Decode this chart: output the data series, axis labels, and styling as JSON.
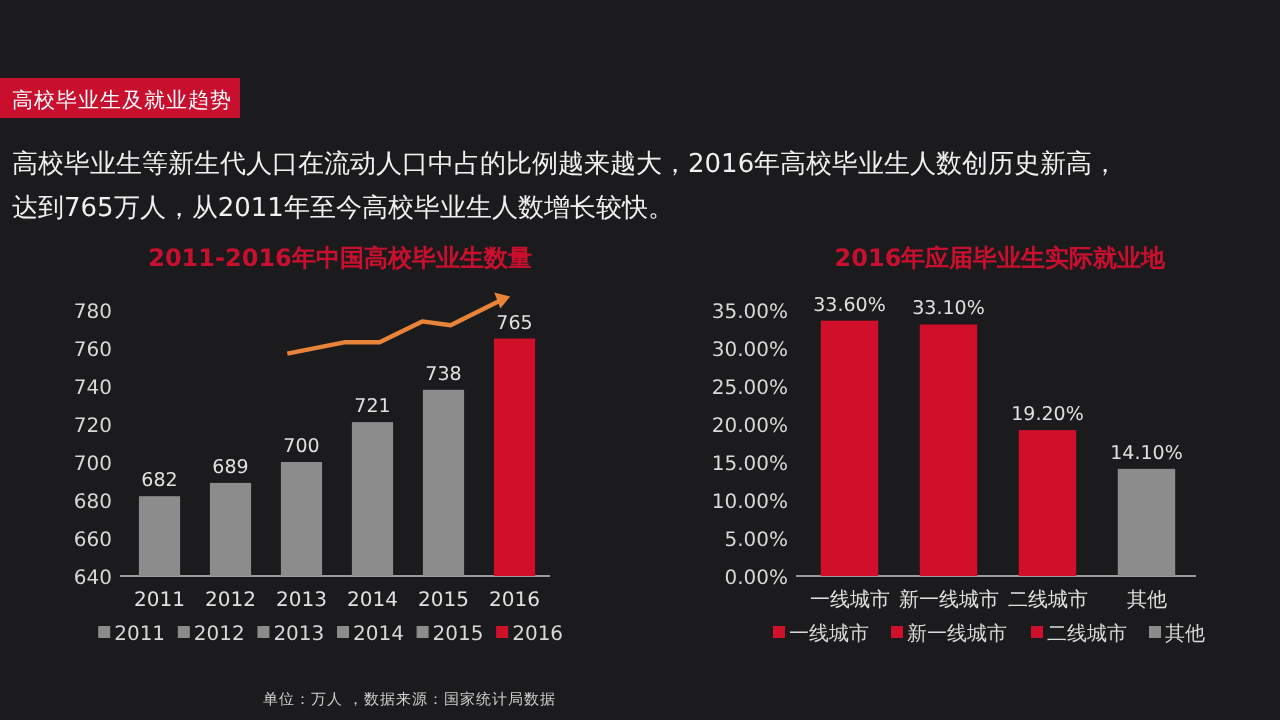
{
  "chart_data": [
    {
      "type": "other",
      "title": "高校毕业生及就业趋势",
      "subtitle": "高校毕业生等新生代人口在流动人口中占的比例越来越大，2016年高校毕业生人数创历史新高，达到765万人，从2011年至今高校毕业生人数增长较快。"
    },
    {
      "type": "bar",
      "title": "2011-2016年中国高校毕业生数量",
      "categories": [
        "2011",
        "2012",
        "2013",
        "2014",
        "2015",
        "2016"
      ],
      "stacked": true,
      "series": [
        {
          "name": "2011",
          "color": "#8c8c8c",
          "values": [
            682,
            null,
            null,
            null,
            null,
            null
          ]
        },
        {
          "name": "2012",
          "color": "#8c8c8c",
          "values": [
            null,
            689,
            null,
            null,
            null,
            null
          ]
        },
        {
          "name": "2013",
          "color": "#8c8c8c",
          "values": [
            null,
            null,
            700,
            null,
            null,
            null
          ]
        },
        {
          "name": "2014",
          "color": "#8c8c8c",
          "values": [
            null,
            null,
            null,
            721,
            null,
            null
          ]
        },
        {
          "name": "2015",
          "color": "#8c8c8c",
          "values": [
            null,
            null,
            null,
            null,
            738,
            null
          ]
        },
        {
          "name": "2016",
          "color": "#d0102a",
          "values": [
            null,
            null,
            null,
            null,
            null,
            765
          ]
        }
      ],
      "ylim": [
        640,
        780
      ],
      "yticks": [
        640,
        660,
        680,
        700,
        720,
        740,
        760,
        780
      ],
      "data_labels": true,
      "legend": "bottom",
      "annotations": [
        "单位：万人 ，数据来源：国家统计局数据"
      ]
    },
    {
      "type": "bar",
      "title": "2016年应届毕业生实际就业地",
      "categories": [
        "一线城市",
        "新一线城市",
        "二线城市",
        "其他"
      ],
      "stacked": true,
      "series": [
        {
          "name": "一线城市",
          "color": "#d0102a",
          "values": [
            33.6,
            null,
            null,
            null
          ],
          "value_labels": [
            "33.60%",
            null,
            null,
            null
          ]
        },
        {
          "name": "新一线城市",
          "color": "#d0102a",
          "values": [
            null,
            33.1,
            null,
            null
          ],
          "value_labels": [
            null,
            "33.10%",
            null,
            null
          ]
        },
        {
          "name": "二线城市",
          "color": "#d0102a",
          "values": [
            null,
            null,
            19.2,
            null
          ],
          "value_labels": [
            null,
            null,
            "19.20%",
            null
          ]
        },
        {
          "name": "其他",
          "color": "#8c8c8c",
          "values": [
            null,
            null,
            null,
            14.1
          ],
          "value_labels": [
            null,
            null,
            null,
            "14.10%"
          ]
        }
      ],
      "ylim": [
        0,
        35
      ],
      "yticks": [
        {
          "value": 0,
          "label": "0.00%"
        },
        {
          "value": 5,
          "label": "5.00%"
        },
        {
          "value": 10,
          "label": "10.00%"
        },
        {
          "value": 15,
          "label": "15.00%"
        },
        {
          "value": 20,
          "label": "20.00%"
        },
        {
          "value": 25,
          "label": "25.00%"
        },
        {
          "value": 30,
          "label": "30.00%"
        },
        {
          "value": 35,
          "label": "35.00%"
        }
      ],
      "legend": "bottom"
    }
  ]
}
